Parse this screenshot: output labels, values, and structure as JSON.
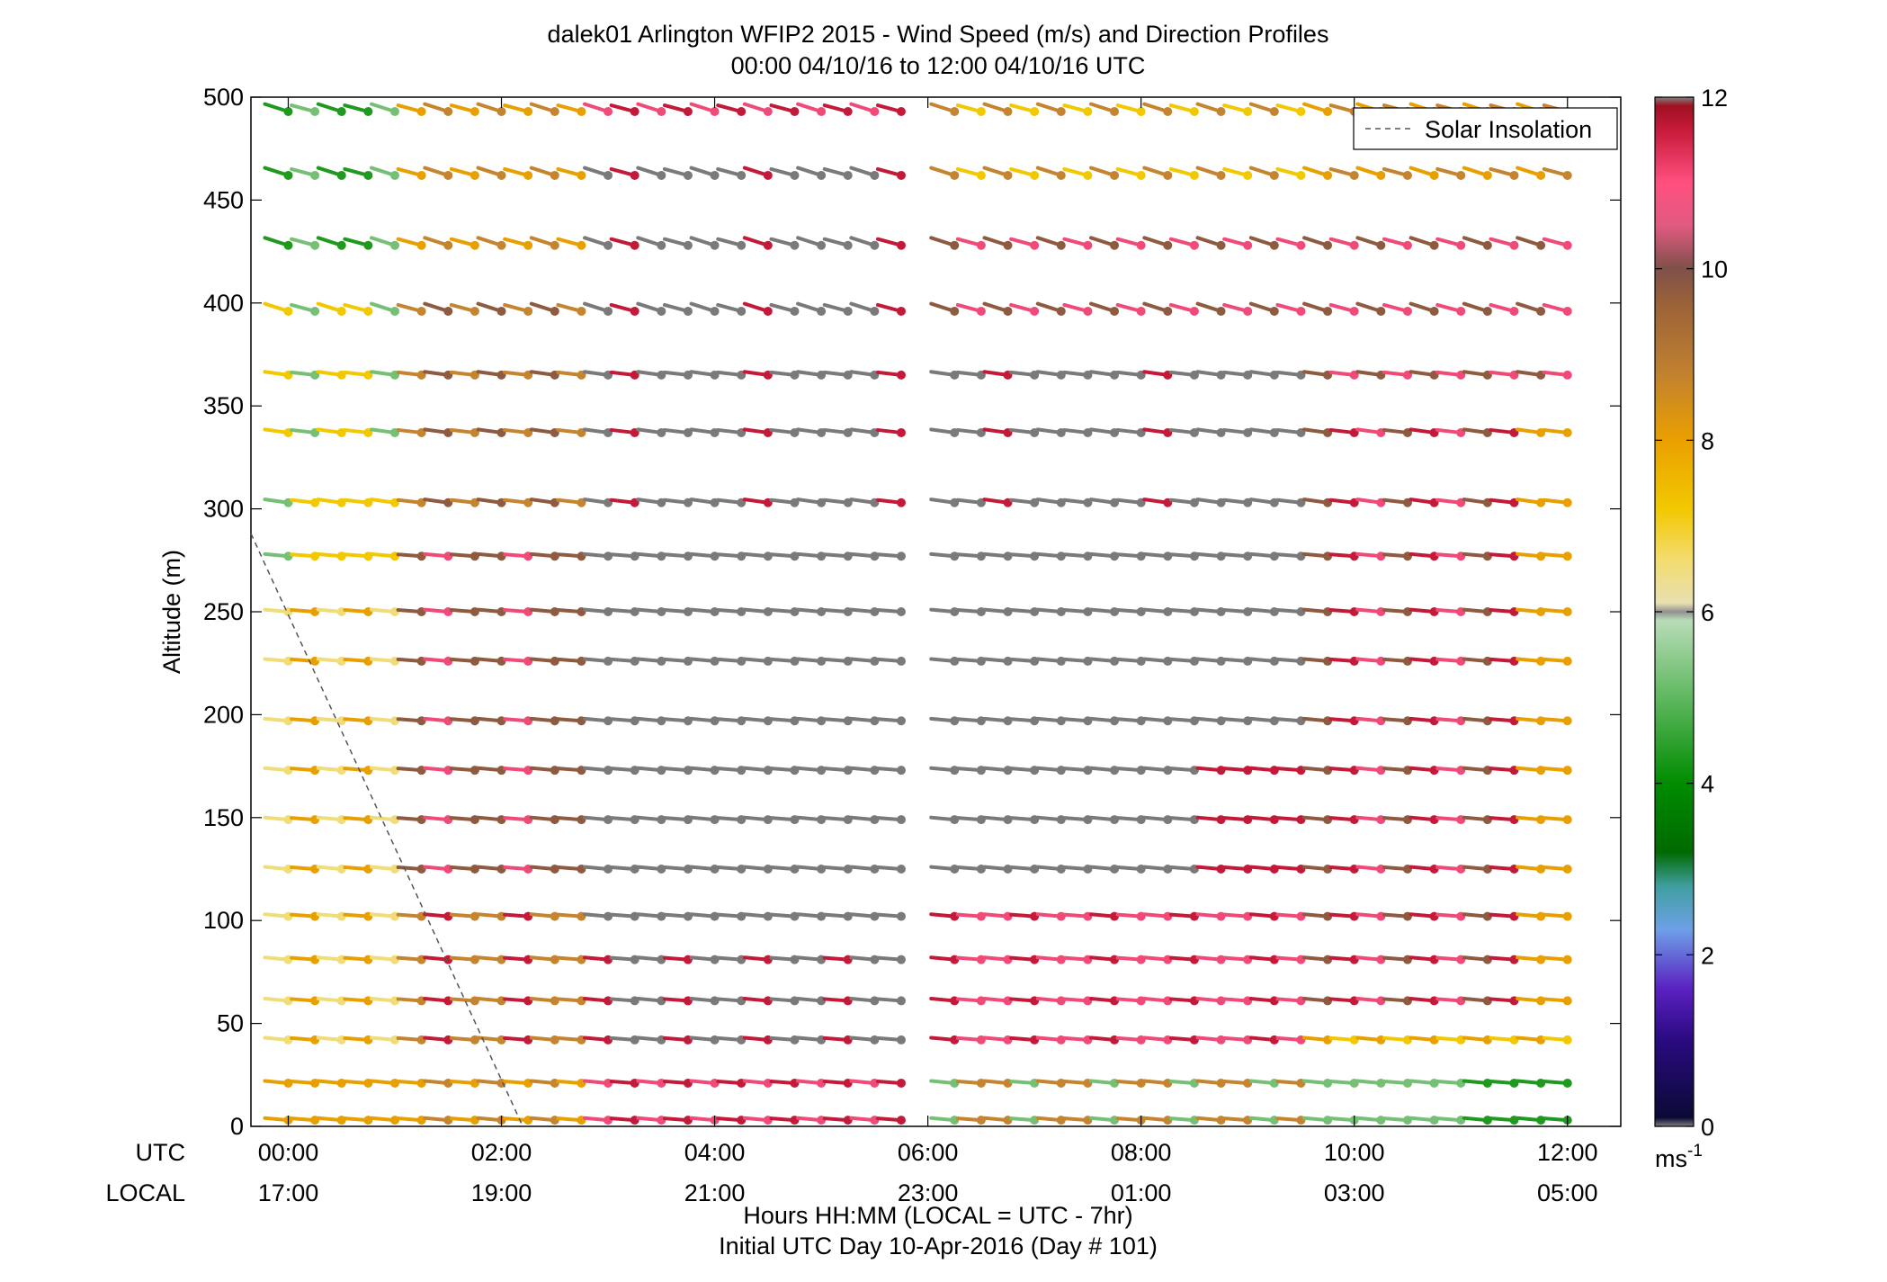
{
  "chart_data": {
    "type": "wind-barb-profile",
    "title_line1": "dalek01 Arlington WFIP2 2015 - Wind Speed (m/s) and Direction Profiles",
    "title_line2": "00:00 04/10/16 to 12:00 04/10/16  UTC",
    "ylabel": "Altitude (m)",
    "xlabel_line1": "Hours HH:MM  (LOCAL = UTC - 7hr)",
    "xlabel_line2": "Initial UTC Day 10-Apr-2016 (Day # 101)",
    "xlim": [
      -0.35,
      12.5
    ],
    "ylim": [
      0,
      500
    ],
    "grid": false,
    "legend_position": "top-right",
    "legend_label": "Solar Insolation",
    "row_label_utc": "UTC",
    "row_label_local": "LOCAL",
    "x_ticks": [
      {
        "hour": 0,
        "utc": "00:00",
        "local": "17:00"
      },
      {
        "hour": 2,
        "utc": "02:00",
        "local": "19:00"
      },
      {
        "hour": 4,
        "utc": "04:00",
        "local": "21:00"
      },
      {
        "hour": 6,
        "utc": "06:00",
        "local": "23:00"
      },
      {
        "hour": 8,
        "utc": "08:00",
        "local": "01:00"
      },
      {
        "hour": 10,
        "utc": "10:00",
        "local": "03:00"
      },
      {
        "hour": 12,
        "utc": "12:00",
        "local": "05:00"
      }
    ],
    "y_ticks": [
      0,
      50,
      100,
      150,
      200,
      250,
      300,
      350,
      400,
      450,
      500
    ],
    "altitudes": [
      3,
      21,
      42,
      61,
      81,
      102,
      125,
      149,
      173,
      197,
      226,
      250,
      277,
      303,
      337,
      365,
      396,
      428,
      462,
      493
    ],
    "times": [
      [
        0.0,
        0.25,
        0.5,
        0.75,
        1.0
      ],
      [
        1.25,
        1.5,
        1.75,
        2.0,
        2.25,
        2.5,
        2.75
      ],
      [
        3.0,
        3.25,
        3.5,
        3.75,
        4.0,
        4.25,
        4.5,
        4.75,
        5.0,
        5.25,
        5.5,
        5.75
      ],
      [
        6.25,
        6.5,
        6.75,
        7.0,
        7.25,
        7.5,
        7.75,
        8.0,
        8.25,
        8.5,
        8.75,
        9.0,
        9.25,
        9.5,
        9.75,
        10.0,
        10.25,
        10.5,
        10.75,
        11.0,
        11.25,
        11.5,
        11.75,
        12.0
      ]
    ],
    "solar_insolation_line": {
      "from": [
        -0.35,
        288
      ],
      "to": [
        2.2,
        0
      ]
    },
    "colorbar": {
      "min": 0,
      "max": 12,
      "unit": "ms-1",
      "ticks": [
        0,
        2,
        4,
        6,
        8,
        10,
        12
      ],
      "stops": [
        {
          "v": 0.0,
          "c": "#808080"
        },
        {
          "v": 0.1,
          "c": "#0a0a35"
        },
        {
          "v": 1.0,
          "c": "#2a0a80"
        },
        {
          "v": 1.6,
          "c": "#5a20c0"
        },
        {
          "v": 2.3,
          "c": "#6ea0e8"
        },
        {
          "v": 2.8,
          "c": "#3f9f9f"
        },
        {
          "v": 3.2,
          "c": "#006a00"
        },
        {
          "v": 4.0,
          "c": "#008c00"
        },
        {
          "v": 5.0,
          "c": "#5fb85f"
        },
        {
          "v": 5.9,
          "c": "#b8dcb8"
        },
        {
          "v": 6.0,
          "c": "#909090"
        },
        {
          "v": 6.1,
          "c": "#e8e0b0"
        },
        {
          "v": 6.6,
          "c": "#f3dc70"
        },
        {
          "v": 7.2,
          "c": "#f2c800"
        },
        {
          "v": 8.0,
          "c": "#eaa000"
        },
        {
          "v": 8.8,
          "c": "#c08030"
        },
        {
          "v": 9.6,
          "c": "#9a6238"
        },
        {
          "v": 10.0,
          "c": "#80504a"
        },
        {
          "v": 10.5,
          "c": "#e05a80"
        },
        {
          "v": 11.0,
          "c": "#ff5080"
        },
        {
          "v": 11.6,
          "c": "#c81c3c"
        },
        {
          "v": 11.9,
          "c": "#a01020"
        },
        {
          "v": 12.0,
          "c": "#808080"
        }
      ]
    },
    "wind_colors": {
      "green": "#1f9a1f",
      "lightgreen": "#76c076",
      "gray": "#7a7a7a",
      "lightyellow": "#f0dc78",
      "yellow": "#f2c800",
      "orange": "#e8a000",
      "tan": "#c48430",
      "brown": "#8e5a40",
      "pink": "#f04a78",
      "red": "#c41a3a"
    }
  }
}
